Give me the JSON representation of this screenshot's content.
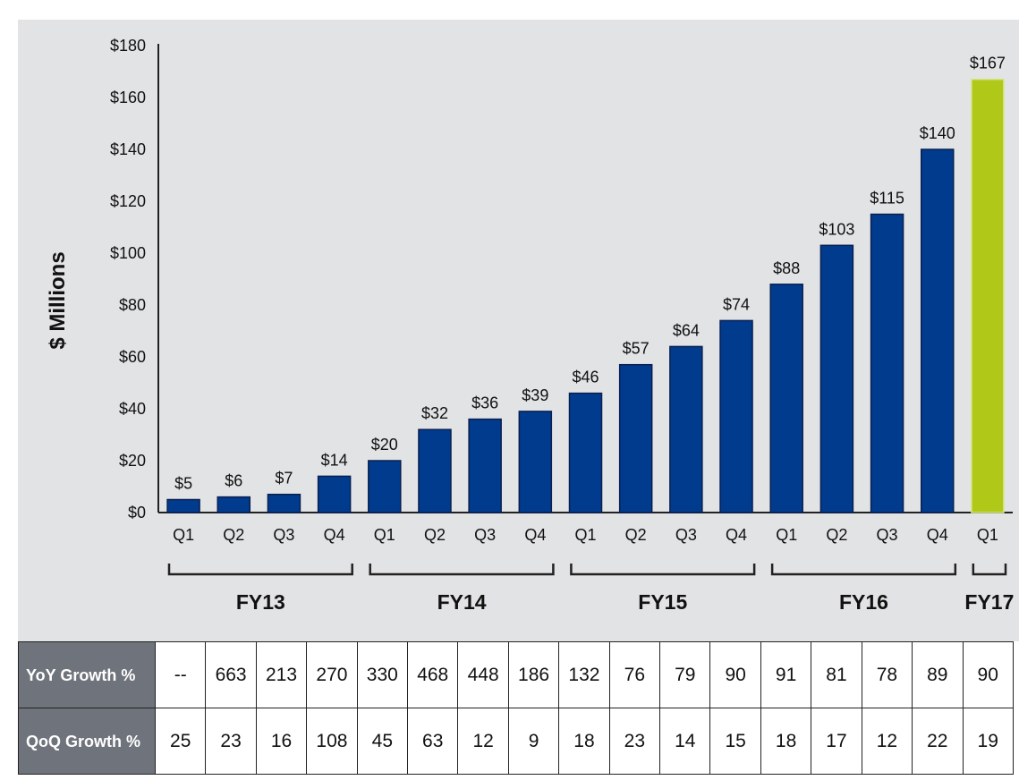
{
  "chart_data": {
    "type": "bar",
    "ylabel": "$ Millions",
    "ylim": [
      0,
      180
    ],
    "y_ticks": [
      "$0",
      "$20",
      "$40",
      "$60",
      "$80",
      "$100",
      "$120",
      "$140",
      "$160",
      "$180"
    ],
    "categories": [
      "Q1",
      "Q2",
      "Q3",
      "Q4",
      "Q1",
      "Q2",
      "Q3",
      "Q4",
      "Q1",
      "Q2",
      "Q3",
      "Q4",
      "Q1",
      "Q2",
      "Q3",
      "Q4",
      "Q1"
    ],
    "values": [
      5,
      6,
      7,
      14,
      20,
      32,
      36,
      39,
      46,
      57,
      64,
      74,
      88,
      103,
      115,
      140,
      167
    ],
    "value_labels": [
      "$5",
      "$6",
      "$7",
      "$14",
      "$20",
      "$32",
      "$36",
      "$39",
      "$46",
      "$57",
      "$64",
      "$74",
      "$88",
      "$103",
      "$115",
      "$140",
      "$167"
    ],
    "groups": [
      {
        "label": "FY13",
        "start": 0,
        "end": 3
      },
      {
        "label": "FY14",
        "start": 4,
        "end": 7
      },
      {
        "label": "FY15",
        "start": 8,
        "end": 11
      },
      {
        "label": "FY16",
        "start": 12,
        "end": 15
      },
      {
        "label": "FY17",
        "start": 16,
        "end": 16
      }
    ],
    "colors": {
      "default_bar": "#003b8e",
      "highlight_bar": "#b0c919"
    },
    "highlight_index": 16,
    "grid": false
  },
  "table": {
    "rows": [
      {
        "header": "YoY Growth %",
        "values": [
          "--",
          "663",
          "213",
          "270",
          "330",
          "468",
          "448",
          "186",
          "132",
          "76",
          "79",
          "90",
          "91",
          "81",
          "78",
          "89",
          "90"
        ]
      },
      {
        "header": "QoQ Growth %",
        "values": [
          "25",
          "23",
          "16",
          "108",
          "45",
          "63",
          "12",
          "9",
          "18",
          "23",
          "14",
          "15",
          "18",
          "17",
          "12",
          "22",
          "19"
        ]
      }
    ],
    "header_color": "#6f737b"
  }
}
